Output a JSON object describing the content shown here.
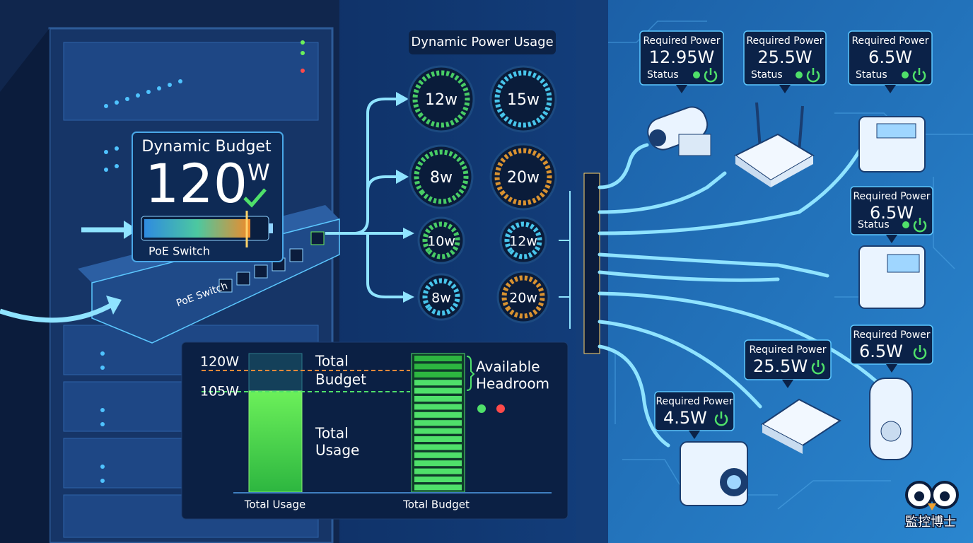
{
  "budget_panel": {
    "title": "Dynamic Budget",
    "value": "120",
    "unit": "W",
    "label": "PoE Switch"
  },
  "switch_label": "PoE Switch",
  "usage_panel": {
    "title": "Dynamic Power Usage",
    "gauges": [
      "12w",
      "15w",
      "8w",
      "20w",
      "10w",
      "12w",
      "8w",
      "20w"
    ]
  },
  "budget_chart": {
    "budget_line": "120W",
    "usage_line": "105W",
    "budget_text": [
      "Total",
      "Budget"
    ],
    "usage_text": [
      "Total",
      "Usage"
    ],
    "headroom_text": [
      "Available",
      "Headroom"
    ],
    "usage_bar_label": "Total Usage",
    "budget_bar_label": "Total Budget"
  },
  "devices": [
    {
      "label": "Required Power",
      "power": "12.95W",
      "status": "Status"
    },
    {
      "label": "Required Power",
      "power": "25.5W",
      "status": "Status"
    },
    {
      "label": "Required Power",
      "power": "6.5W",
      "status": "Status"
    },
    {
      "label": "Required Power",
      "power": "6.5W",
      "status": "Status"
    },
    {
      "label": "Required Power",
      "power": "6.5W"
    },
    {
      "label": "Required Power",
      "power": "25.5W"
    },
    {
      "label": "Required Power",
      "power": "4.5W"
    }
  ],
  "logo": "監控博士"
}
